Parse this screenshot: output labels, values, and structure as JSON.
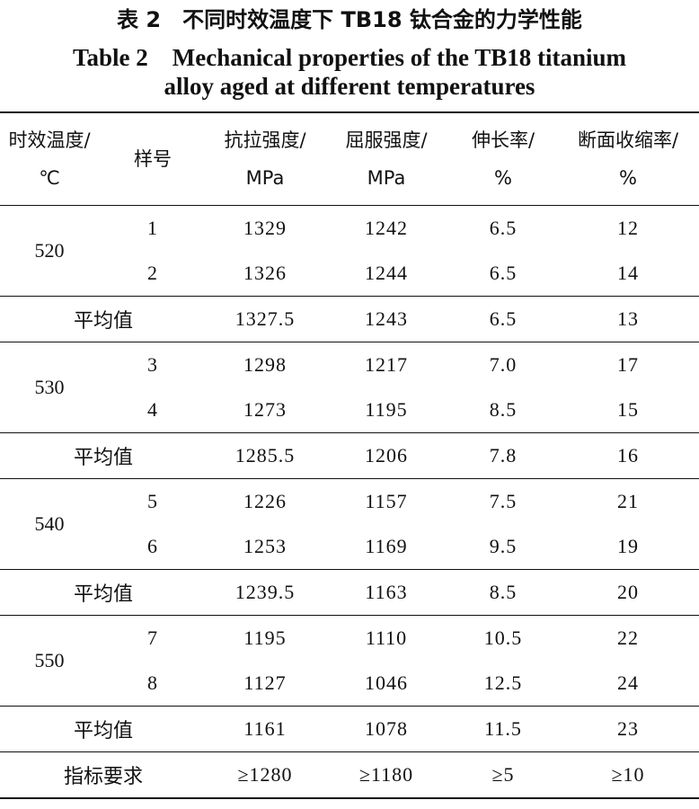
{
  "caption": {
    "zh": "表 2　不同时效温度下 TB18 钛合金的力学性能",
    "en_line1": "Table 2　Mechanical properties of the TB18 titanium",
    "en_line2": "alloy aged at different temperatures"
  },
  "headers": {
    "temp": [
      "时效温度/",
      "℃"
    ],
    "sample": "样号",
    "tensile": [
      "抗拉强度/",
      "MPa"
    ],
    "yield": [
      "屈服强度/",
      "MPa"
    ],
    "elong": [
      "伸长率/",
      "%"
    ],
    "reduction": [
      "断面收缩率/",
      "%"
    ]
  },
  "groups": [
    {
      "temp": "520",
      "rows": [
        [
          "1",
          "1329",
          "1242",
          "6.5",
          "12"
        ],
        [
          "2",
          "1326",
          "1244",
          "6.5",
          "14"
        ]
      ],
      "avg": [
        "平均值",
        "1327.5",
        "1243",
        "6.5",
        "13"
      ]
    },
    {
      "temp": "530",
      "rows": [
        [
          "3",
          "1298",
          "1217",
          "7.0",
          "17"
        ],
        [
          "4",
          "1273",
          "1195",
          "8.5",
          "15"
        ]
      ],
      "avg": [
        "平均值",
        "1285.5",
        "1206",
        "7.8",
        "16"
      ]
    },
    {
      "temp": "540",
      "rows": [
        [
          "5",
          "1226",
          "1157",
          "7.5",
          "21"
        ],
        [
          "6",
          "1253",
          "1169",
          "9.5",
          "19"
        ]
      ],
      "avg": [
        "平均值",
        "1239.5",
        "1163",
        "8.5",
        "20"
      ]
    },
    {
      "temp": "550",
      "rows": [
        [
          "7",
          "1195",
          "1110",
          "10.5",
          "22"
        ],
        [
          "8",
          "1127",
          "1046",
          "12.5",
          "24"
        ]
      ],
      "avg": [
        "平均值",
        "1161",
        "1078",
        "11.5",
        "23"
      ]
    }
  ],
  "requirement": [
    "指标要求",
    "≥1280",
    "≥1180",
    "≥5",
    "≥10"
  ]
}
